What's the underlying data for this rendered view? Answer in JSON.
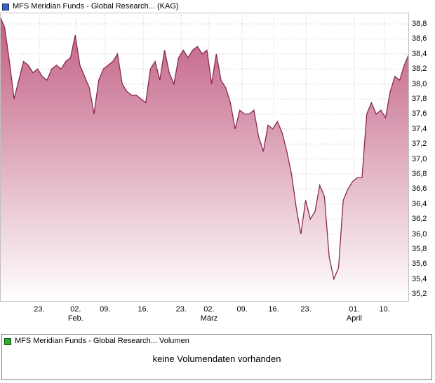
{
  "header": {
    "title": "MFS Meridian Funds - Global Research... (KAG)",
    "marker_color": "#3b62c4"
  },
  "volume": {
    "title": "MFS Meridian Funds - Global Research... Volumen",
    "message": "keine Volumendaten vorhanden",
    "marker_color": "#2eaf2e"
  },
  "chart_data": {
    "type": "area",
    "title": "MFS Meridian Funds - Global Research... (KAG)",
    "xlabel": "",
    "ylabel": "",
    "ylim": [
      35.1,
      38.95
    ],
    "grid": true,
    "line_color": "#882a50",
    "fill_top": "#c05a80",
    "fill_bottom": "#ffffff",
    "grid_color": "#c9c9c9",
    "border_color": "#c0c0c0",
    "y_tick_values": [
      38.8,
      38.6,
      38.4,
      38.2,
      38.0,
      37.8,
      37.6,
      37.4,
      37.2,
      37.0,
      36.8,
      36.6,
      36.4,
      36.2,
      36.0,
      35.8,
      35.6,
      35.4,
      35.2
    ],
    "y_tick_labels": [
      "38,8",
      "38,6",
      "38,4",
      "38,2",
      "38,0",
      "37,8",
      "37,6",
      "37,4",
      "37,2",
      "37,0",
      "36,8",
      "36,6",
      "36,4",
      "36,2",
      "36,0",
      "35,8",
      "35,6",
      "35,4",
      "35,2"
    ],
    "x_ticks": [
      {
        "label": "23.",
        "sub": "",
        "pos": 0.096
      },
      {
        "label": "02.",
        "sub": "Feb.",
        "pos": 0.185
      },
      {
        "label": "09.",
        "sub": "",
        "pos": 0.257
      },
      {
        "label": "16.",
        "sub": "",
        "pos": 0.35
      },
      {
        "label": "23.",
        "sub": "",
        "pos": 0.443
      },
      {
        "label": "02.",
        "sub": "März",
        "pos": 0.511
      },
      {
        "label": "09.",
        "sub": "",
        "pos": 0.592
      },
      {
        "label": "16.",
        "sub": "",
        "pos": 0.669
      },
      {
        "label": "23.",
        "sub": "",
        "pos": 0.748
      },
      {
        "label": "01.",
        "sub": "April",
        "pos": 0.866
      },
      {
        "label": "10.",
        "sub": "",
        "pos": 0.94
      }
    ],
    "values": [
      38.9,
      38.75,
      38.3,
      37.8,
      38.05,
      38.3,
      38.25,
      38.15,
      38.2,
      38.1,
      38.05,
      38.2,
      38.25,
      38.2,
      38.3,
      38.35,
      38.65,
      38.25,
      38.1,
      37.95,
      37.6,
      38.05,
      38.2,
      38.25,
      38.3,
      38.4,
      38.0,
      37.9,
      37.85,
      37.85,
      37.8,
      37.75,
      38.2,
      38.3,
      38.05,
      38.45,
      38.15,
      38.0,
      38.35,
      38.45,
      38.35,
      38.45,
      38.5,
      38.4,
      38.45,
      38.0,
      38.4,
      38.05,
      37.95,
      37.75,
      37.4,
      37.65,
      37.6,
      37.6,
      37.65,
      37.3,
      37.1,
      37.45,
      37.4,
      37.5,
      37.35,
      37.1,
      36.8,
      36.35,
      36.0,
      36.45,
      36.2,
      36.3,
      36.65,
      36.5,
      35.7,
      35.4,
      35.55,
      36.45,
      36.6,
      36.7,
      36.75,
      36.75,
      37.6,
      37.75,
      37.6,
      37.65,
      37.55,
      37.9,
      38.1,
      38.05,
      38.25,
      38.4
    ]
  }
}
